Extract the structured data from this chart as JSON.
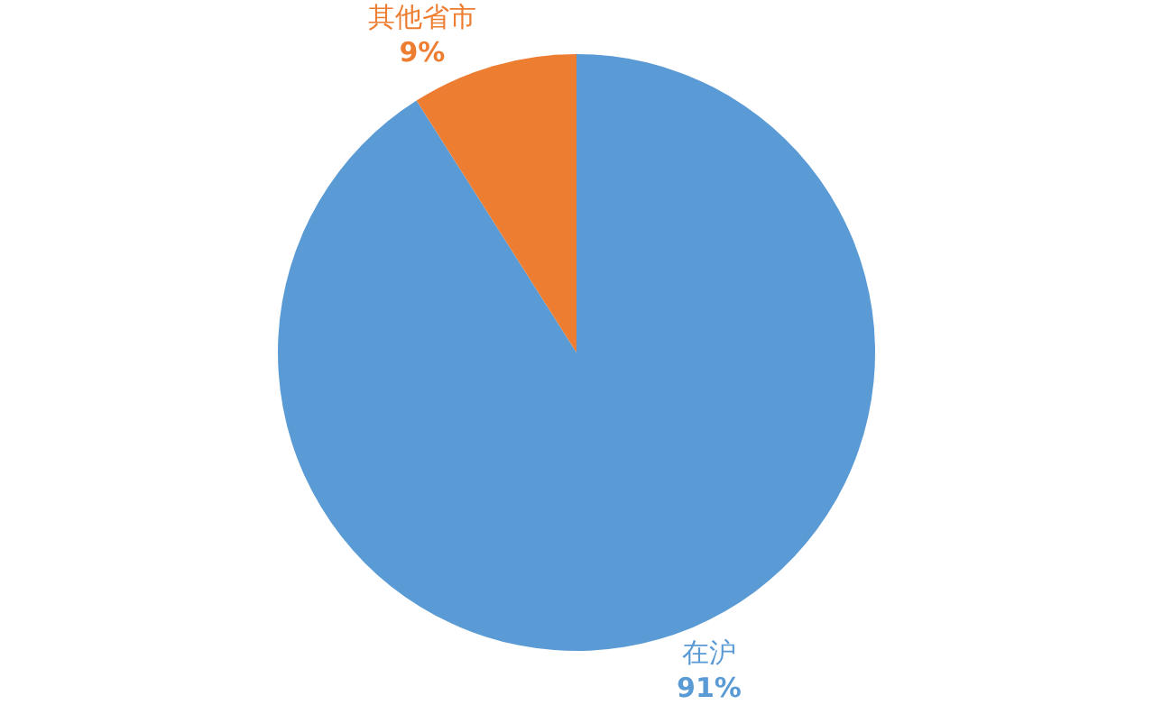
{
  "chart_data": {
    "type": "pie",
    "categories": [
      "在沪",
      "其他省市"
    ],
    "values": [
      91,
      9
    ],
    "colors": [
      "#5b9bd5",
      "#ed7d31"
    ],
    "value_labels": [
      "91%",
      "9%"
    ],
    "legend": false
  }
}
